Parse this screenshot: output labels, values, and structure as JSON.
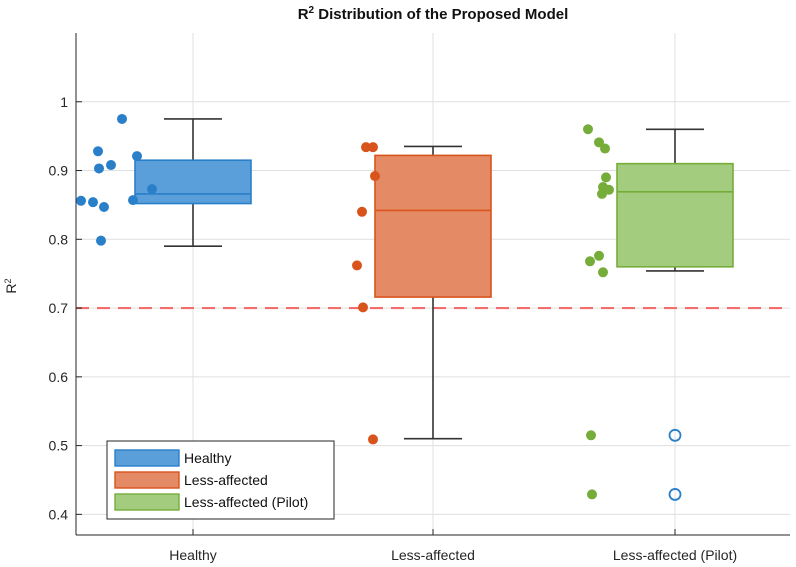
{
  "chart_data": {
    "type": "box",
    "title_main": "R",
    "title_sup": "2",
    "title_rest": " Distribution of the Proposed Model",
    "ylabel_main": "R",
    "ylabel_sup": "2",
    "ylim": [
      0.37,
      1.1
    ],
    "yticks": [
      0.4,
      0.5,
      0.6,
      0.7,
      0.8,
      0.9,
      1
    ],
    "ytick_labels": [
      "0.4",
      "0.5",
      "0.6",
      "0.7",
      "0.8",
      "0.9",
      "1"
    ],
    "threshold": 0.7,
    "threshold_color": "#f46d6d",
    "categories": [
      "Healthy",
      "Less-affected",
      "Less-affected (Pilot)"
    ],
    "series": [
      {
        "name": "Healthy",
        "color": "#2a7fc9",
        "fill": "#5a9fd9",
        "points": [
          0.975,
          0.928,
          0.921,
          0.908,
          0.903,
          0.873,
          0.857,
          0.856,
          0.854,
          0.847,
          0.798
        ],
        "box": {
          "q1": 0.852,
          "median": 0.866,
          "q3": 0.915,
          "whisker_low": 0.79,
          "whisker_high": 0.975
        },
        "outliers": []
      },
      {
        "name": "Less-affected",
        "color": "#d9541d",
        "fill": "#e48b65",
        "points": [
          0.934,
          0.934,
          0.892,
          0.84,
          0.762,
          0.701,
          0.509
        ],
        "box": {
          "q1": 0.716,
          "median": 0.842,
          "q3": 0.922,
          "whisker_low": 0.51,
          "whisker_high": 0.935
        },
        "outliers": []
      },
      {
        "name": "Less-affected (Pilot)",
        "color": "#76ad3a",
        "fill": "#a4cc7e",
        "points": [
          0.96,
          0.941,
          0.932,
          0.89,
          0.876,
          0.872,
          0.866,
          0.776,
          0.768,
          0.752,
          0.515,
          0.429
        ],
        "box": {
          "q1": 0.76,
          "median": 0.869,
          "q3": 0.91,
          "whisker_low": 0.754,
          "whisker_high": 0.96
        },
        "outliers": [
          0.515,
          0.429
        ],
        "outlier_color": "#2a7fc9"
      }
    ],
    "legend": {
      "placement": "bottom-left",
      "entries": [
        "Healthy",
        "Less-affected",
        "Less-affected (Pilot)"
      ]
    }
  }
}
